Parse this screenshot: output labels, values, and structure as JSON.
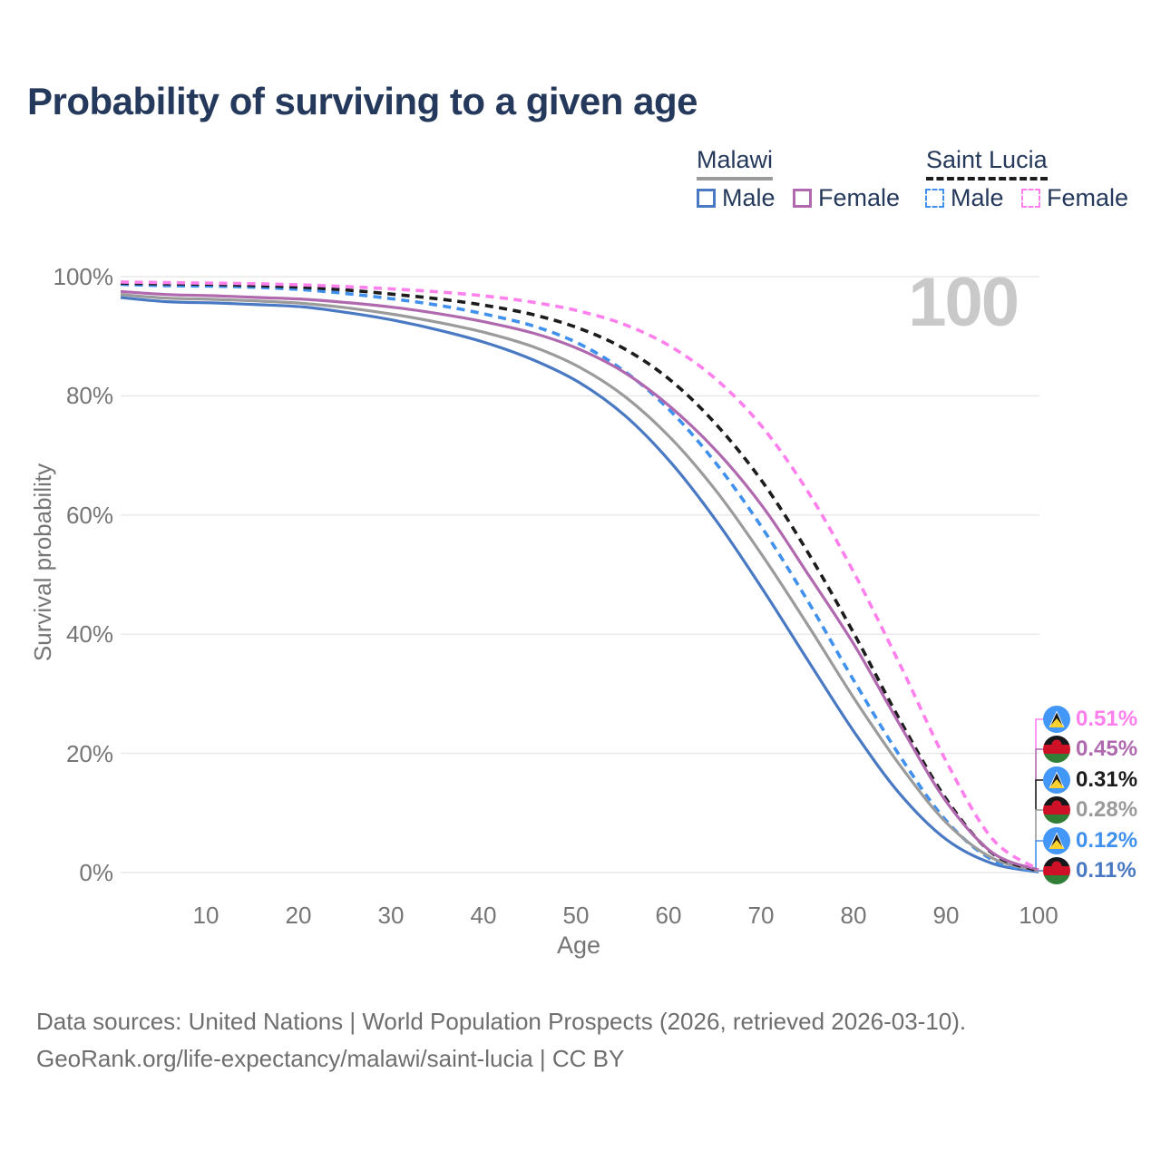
{
  "title": "Probability of surviving to a given age",
  "watermark_age": "100",
  "legend": {
    "groups": [
      {
        "name": "Malawi",
        "line_style": "solid",
        "underline_color": "#9b9b9b",
        "items": [
          {
            "label": "Male",
            "color": "#4a79c4"
          },
          {
            "label": "Female",
            "color": "#b069ae"
          }
        ]
      },
      {
        "name": "Saint Lucia",
        "line_style": "dashed",
        "underline_color": "#1c1c1c",
        "items": [
          {
            "label": "Male",
            "color": "#4090ee"
          },
          {
            "label": "Female",
            "color": "#ff80ec"
          }
        ]
      }
    ]
  },
  "chart_data": {
    "type": "line",
    "title": "Probability of surviving to a given age",
    "xlabel": "Age",
    "ylabel": "Survival probability",
    "xlim": [
      0,
      100
    ],
    "ylim": [
      0,
      100
    ],
    "grid": "horizontal",
    "x_tick_labels": [
      "10",
      "20",
      "30",
      "40",
      "50",
      "60",
      "70",
      "80",
      "90",
      "100"
    ],
    "y_tick_labels": [
      "100%",
      "80%",
      "60%",
      "40%",
      "20%",
      "0%"
    ],
    "x": [
      0,
      5,
      10,
      15,
      20,
      25,
      30,
      35,
      40,
      45,
      50,
      55,
      60,
      65,
      70,
      75,
      80,
      85,
      90,
      95,
      100
    ],
    "series": [
      {
        "name": "Saint Lucia Female",
        "country": "Saint Lucia",
        "sex": "Female",
        "color": "#ff80ec",
        "dash": true,
        "end_label": "0.51%",
        "flag": "saint-lucia",
        "values": [
          99.1,
          99.0,
          98.9,
          98.8,
          98.6,
          98.3,
          97.9,
          97.4,
          96.7,
          95.7,
          94.2,
          91.9,
          88.2,
          82.6,
          74.6,
          63.6,
          50.0,
          34.6,
          18.5,
          5.6,
          0.51
        ]
      },
      {
        "name": "Malawi Female",
        "country": "Malawi",
        "sex": "Female",
        "color": "#b069ae",
        "dash": false,
        "end_label": "0.45%",
        "flag": "malawi",
        "values": [
          97.5,
          97.0,
          96.8,
          96.5,
          96.2,
          95.6,
          94.8,
          93.7,
          92.3,
          90.5,
          87.8,
          83.8,
          78.0,
          70.6,
          61.3,
          49.8,
          38.0,
          24.5,
          11.8,
          3.3,
          0.45
        ]
      },
      {
        "name": "Saint Lucia Both sexes",
        "country": "Saint Lucia",
        "sex": "Both",
        "color": "#1c1c1c",
        "dash": true,
        "end_label": "0.31%",
        "flag": "saint-lucia",
        "values": [
          98.9,
          98.8,
          98.7,
          98.5,
          98.2,
          97.7,
          97.0,
          96.2,
          95.1,
          93.6,
          91.3,
          87.8,
          82.5,
          75.0,
          65.4,
          53.4,
          39.8,
          25.3,
          12.2,
          3.2,
          0.31
        ]
      },
      {
        "name": "Malawi Both sexes",
        "country": "Malawi",
        "sex": "Both",
        "color": "#9b9b9b",
        "dash": false,
        "end_label": "0.28%",
        "flag": "malawi",
        "values": [
          97.0,
          96.4,
          96.2,
          95.9,
          95.5,
          94.7,
          93.6,
          92.2,
          90.5,
          88.2,
          84.8,
          79.8,
          72.8,
          63.8,
          53.0,
          41.2,
          29.0,
          17.8,
          8.3,
          2.4,
          0.28
        ]
      },
      {
        "name": "Saint Lucia Male",
        "country": "Saint Lucia",
        "sex": "Male",
        "color": "#4090ee",
        "dash": true,
        "end_label": "0.12%",
        "flag": "saint-lucia",
        "values": [
          98.7,
          98.5,
          98.4,
          98.2,
          97.8,
          97.1,
          96.2,
          95.1,
          93.6,
          91.7,
          88.7,
          84.0,
          77.3,
          68.4,
          57.6,
          45.2,
          31.9,
          19.3,
          8.6,
          2.1,
          0.12
        ]
      },
      {
        "name": "Malawi Male",
        "country": "Malawi",
        "sex": "Male",
        "color": "#4a79c4",
        "dash": false,
        "end_label": "0.11%",
        "flag": "malawi",
        "values": [
          96.5,
          95.8,
          95.6,
          95.3,
          94.9,
          93.9,
          92.6,
          90.9,
          88.8,
          86.0,
          82.2,
          76.6,
          68.7,
          58.8,
          47.4,
          35.3,
          23.4,
          13.0,
          5.5,
          1.5,
          0.11
        ]
      }
    ]
  },
  "footer": {
    "line1": "Data sources: United Nations | World Population Prospects (2026, retrieved 2026-03-10).",
    "line2": "GeoRank.org/life-expectancy/malawi/saint-lucia | CC BY"
  }
}
